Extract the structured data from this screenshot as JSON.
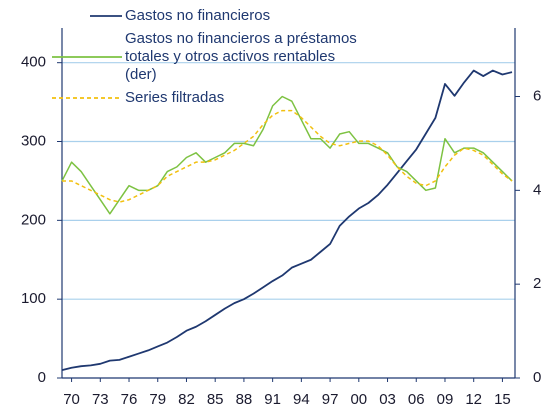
{
  "chart_data": {
    "type": "line",
    "x": [
      1969,
      1970,
      1971,
      1972,
      1973,
      1974,
      1975,
      1976,
      1977,
      1978,
      1979,
      1980,
      1981,
      1982,
      1983,
      1984,
      1985,
      1986,
      1987,
      1988,
      1989,
      1990,
      1991,
      1992,
      1993,
      1994,
      1995,
      1996,
      1997,
      1998,
      1999,
      2000,
      2001,
      2002,
      2003,
      2004,
      2005,
      2006,
      2007,
      2008,
      2009,
      2010,
      2011,
      2012,
      2013,
      2014,
      2015,
      2016
    ],
    "xlim": [
      1969,
      2016
    ],
    "xticks": [
      {
        "value": 1970,
        "label": "70"
      },
      {
        "value": 1973,
        "label": "73"
      },
      {
        "value": 1976,
        "label": "76"
      },
      {
        "value": 1979,
        "label": "79"
      },
      {
        "value": 1982,
        "label": "82"
      },
      {
        "value": 1985,
        "label": "85"
      },
      {
        "value": 1988,
        "label": "88"
      },
      {
        "value": 1991,
        "label": "91"
      },
      {
        "value": 1994,
        "label": "94"
      },
      {
        "value": 1997,
        "label": "97"
      },
      {
        "value": 2000,
        "label": "00"
      },
      {
        "value": 2003,
        "label": "03"
      },
      {
        "value": 2006,
        "label": "06"
      },
      {
        "value": 2009,
        "label": "09"
      },
      {
        "value": 2012,
        "label": "12"
      },
      {
        "value": 2015,
        "label": "15"
      }
    ],
    "ylim": [
      0,
      444
    ],
    "yticks": [
      0,
      100,
      200,
      300,
      400
    ],
    "y2lim": [
      0,
      7.46
    ],
    "y2ticks": [
      0,
      2,
      4,
      6
    ],
    "grid": true,
    "legend": "upper-left",
    "series": [
      {
        "name": "Gastos no financieros",
        "color": "#1f3870",
        "dash": false,
        "values": [
          10,
          13,
          15,
          16,
          18,
          22,
          23,
          27,
          31,
          35,
          40,
          45,
          52,
          60,
          65,
          72,
          80,
          88,
          95,
          100,
          107,
          115,
          123,
          130,
          140,
          145,
          150,
          160,
          170,
          193,
          205,
          215,
          222,
          232,
          245,
          260,
          275,
          290,
          310,
          330,
          373,
          358,
          375,
          390,
          383,
          390,
          385,
          388
        ]
      },
      {
        "name": "Gastos no financieros a préstamos totales y otros activos rentables (der)",
        "color": "#7dc242",
        "dash": false,
        "axis": "y2",
        "values": [
          4.2,
          4.6,
          4.4,
          4.1,
          3.8,
          3.5,
          3.8,
          4.1,
          4.0,
          4.0,
          4.1,
          4.4,
          4.5,
          4.7,
          4.8,
          4.6,
          4.7,
          4.8,
          5.0,
          5.0,
          4.95,
          5.3,
          5.8,
          6.0,
          5.9,
          5.5,
          5.1,
          5.1,
          4.9,
          5.2,
          5.25,
          5.0,
          5.0,
          4.9,
          4.8,
          4.5,
          4.4,
          4.2,
          4.0,
          4.05,
          5.1,
          4.8,
          4.9,
          4.9,
          4.8,
          4.6,
          4.4,
          4.2
        ]
      },
      {
        "name": "Series filtradas",
        "color": "#f2c00f",
        "dash": true,
        "axis": "y2",
        "values": [
          4.2,
          4.2,
          4.1,
          4.0,
          3.9,
          3.8,
          3.75,
          3.8,
          3.9,
          4.0,
          4.1,
          4.3,
          4.4,
          4.5,
          4.6,
          4.6,
          4.65,
          4.75,
          4.85,
          5.0,
          5.15,
          5.4,
          5.6,
          5.7,
          5.7,
          5.55,
          5.35,
          5.15,
          5.0,
          4.95,
          5.0,
          5.05,
          5.05,
          4.95,
          4.75,
          4.5,
          4.3,
          4.15,
          4.1,
          4.2,
          4.5,
          4.75,
          4.9,
          4.85,
          4.75,
          4.55,
          4.35,
          4.2
        ]
      }
    ]
  }
}
